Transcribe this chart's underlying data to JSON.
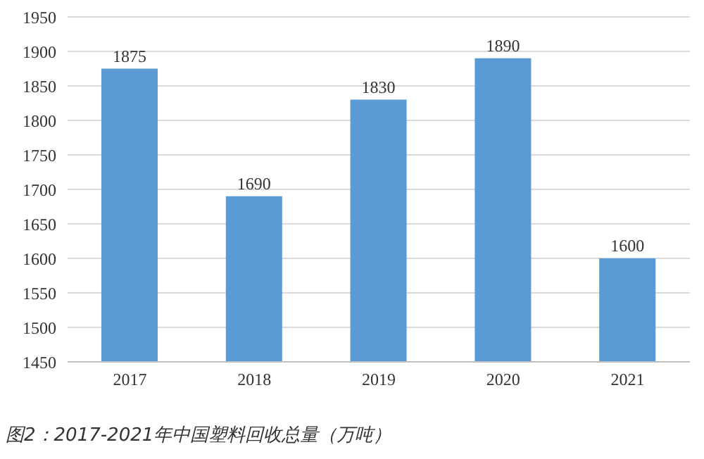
{
  "chart_data": {
    "type": "bar",
    "categories": [
      "2017",
      "2018",
      "2019",
      "2020",
      "2021"
    ],
    "values": [
      1875,
      1690,
      1830,
      1890,
      1600
    ],
    "color": "#5b9bd5",
    "ylim": [
      1450,
      1950
    ],
    "yticks": [
      1450,
      1500,
      1550,
      1600,
      1650,
      1700,
      1750,
      1800,
      1850,
      1900,
      1950
    ],
    "grid": "y",
    "data_labels": true,
    "annotations": [
      "图2：2017-2021年中国塑料回收总量（万吨）"
    ]
  }
}
